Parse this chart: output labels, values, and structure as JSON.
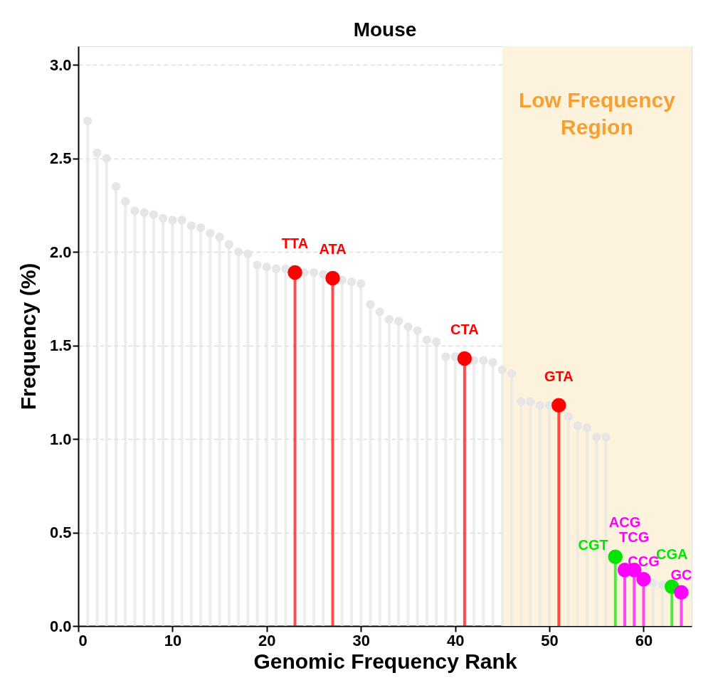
{
  "chart_data": {
    "type": "lollipop",
    "title": "Mouse",
    "xlabel": "Genomic Frequency Rank",
    "ylabel": "Frequency (%)",
    "marker": "circle",
    "grid": "y",
    "x": [
      1,
      2,
      3,
      4,
      5,
      6,
      7,
      8,
      9,
      10,
      11,
      12,
      13,
      14,
      15,
      16,
      17,
      18,
      19,
      20,
      21,
      22,
      23,
      24,
      25,
      26,
      27,
      28,
      29,
      30,
      31,
      32,
      33,
      34,
      35,
      36,
      37,
      38,
      39,
      40,
      41,
      42,
      43,
      44,
      45,
      46,
      47,
      48,
      49,
      50,
      51,
      52,
      53,
      54,
      55,
      56,
      57,
      58,
      59,
      60,
      61,
      62,
      63,
      64
    ],
    "values": [
      2.7,
      2.53,
      2.5,
      2.35,
      2.27,
      2.22,
      2.21,
      2.2,
      2.18,
      2.17,
      2.17,
      2.14,
      2.13,
      2.1,
      2.08,
      2.04,
      2.0,
      1.99,
      1.93,
      1.92,
      1.91,
      1.91,
      1.89,
      1.89,
      1.89,
      1.88,
      1.86,
      1.85,
      1.84,
      1.83,
      1.72,
      1.68,
      1.64,
      1.63,
      1.6,
      1.58,
      1.53,
      1.52,
      1.44,
      1.44,
      1.43,
      1.42,
      1.42,
      1.41,
      1.37,
      1.35,
      1.2,
      1.2,
      1.18,
      1.18,
      1.18,
      1.12,
      1.07,
      1.06,
      1.01,
      1.01,
      0.37,
      0.3,
      0.3,
      0.25,
      0.23,
      0.22,
      0.21,
      0.18
    ],
    "colors": [
      "#e6e6e6",
      "#e6e6e6",
      "#e6e6e6",
      "#e6e6e6",
      "#e6e6e6",
      "#e6e6e6",
      "#e6e6e6",
      "#e6e6e6",
      "#e6e6e6",
      "#e6e6e6",
      "#e6e6e6",
      "#e6e6e6",
      "#e6e6e6",
      "#e6e6e6",
      "#e6e6e6",
      "#e6e6e6",
      "#e6e6e6",
      "#e6e6e6",
      "#e6e6e6",
      "#e6e6e6",
      "#e6e6e6",
      "#e6e6e6",
      "#ff0000",
      "#e6e6e6",
      "#e6e6e6",
      "#e6e6e6",
      "#ff0000",
      "#e6e6e6",
      "#e6e6e6",
      "#e6e6e6",
      "#e6e6e6",
      "#e6e6e6",
      "#e6e6e6",
      "#e6e6e6",
      "#e6e6e6",
      "#e6e6e6",
      "#e6e6e6",
      "#e6e6e6",
      "#e6e6e6",
      "#e6e6e6",
      "#ff0000",
      "#e6e6e6",
      "#e6e6e6",
      "#e6e6e6",
      "#e6e6e6",
      "#e6e6e6",
      "#e6e6e6",
      "#e6e6e6",
      "#e6e6e6",
      "#e6e6e6",
      "#ff0000",
      "#e6e6e6",
      "#e6e6e6",
      "#e6e6e6",
      "#e6e6e6",
      "#e6e6e6",
      "#00e600",
      "#ff00ff",
      "#ff00ff",
      "#ff00ff",
      "#e6e6e6",
      "#e6e6e6",
      "#00e600",
      "#ff00ff"
    ],
    "sizes": [
      0.36,
      0.36,
      0.36,
      0.36,
      0.36,
      0.36,
      0.36,
      0.36,
      0.36,
      0.36,
      0.36,
      0.36,
      0.36,
      0.36,
      0.36,
      0.36,
      0.36,
      0.36,
      0.36,
      0.36,
      0.36,
      0.36,
      1,
      0.36,
      0.36,
      0.36,
      1,
      0.36,
      0.36,
      0.36,
      0.36,
      0.36,
      0.36,
      0.36,
      0.36,
      0.36,
      0.36,
      0.36,
      0.36,
      0.36,
      1,
      0.36,
      0.36,
      0.36,
      0.36,
      0.36,
      0.36,
      0.36,
      0.36,
      0.36,
      1,
      0.36,
      0.36,
      0.36,
      0.36,
      0.36,
      1,
      1,
      1,
      1,
      0.36,
      0.36,
      1,
      1
    ],
    "annotations": [
      {
        "text": "TTA",
        "x": 23,
        "y": 1.89
      },
      {
        "text": "ATA",
        "x": 27,
        "y": 1.86
      },
      {
        "text": "CTA",
        "x": 41,
        "y": 1.43
      },
      {
        "text": "GTA",
        "x": 51,
        "y": 1.18
      },
      {
        "text": "CGT",
        "x": 57,
        "y": 0.37
      },
      {
        "text": "ACG",
        "x": 58,
        "y": 0.3
      },
      {
        "text": "TCG",
        "x": 59,
        "y": 0.3
      },
      {
        "text": "CCG",
        "x": 60,
        "y": 0.25
      },
      {
        "text": "CGA",
        "x": 63,
        "y": 0.21
      },
      {
        "text": "GC",
        "x": 64,
        "y": 0.18
      }
    ],
    "xlim": [
      0,
      65.1
    ],
    "xticks": [
      0,
      10,
      20,
      30,
      40,
      50,
      60
    ],
    "ylim": [
      0,
      3.1
    ],
    "yticks": [
      {
        "value": 0,
        "label": "0.0"
      },
      {
        "value": 0.5,
        "label": "0.5"
      },
      {
        "value": 1,
        "label": "1.0"
      },
      {
        "value": 1.5,
        "label": "1.5"
      },
      {
        "value": 2,
        "label": "2.0"
      },
      {
        "value": 2.5,
        "label": "2.5"
      },
      {
        "value": 3,
        "label": "3.0"
      }
    ],
    "bands": [
      {
        "axis": "x",
        "from": 45,
        "to": 65.1,
        "label": "Low Frequency Region",
        "color": "#fdf3dc"
      }
    ]
  }
}
